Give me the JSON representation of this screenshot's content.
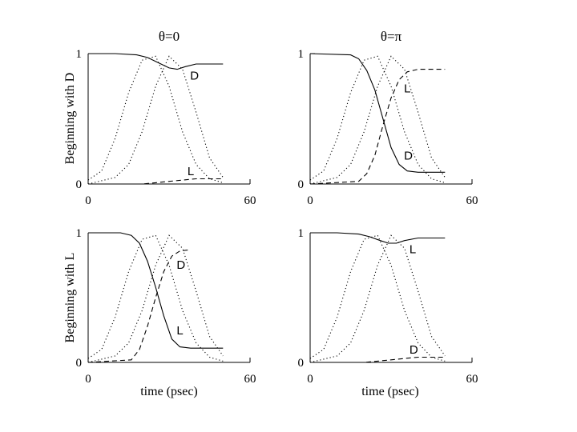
{
  "figure": {
    "row_labels": [
      "Beginning with D",
      "Beginning with L"
    ],
    "xlabel": "time (psec)"
  },
  "chart_data": [
    {
      "type": "line",
      "title": "θ=0",
      "xlim": [
        0,
        60
      ],
      "ylim": [
        0,
        1
      ],
      "yticks": [
        "0",
        "1"
      ],
      "xticks": [
        "0",
        "60"
      ],
      "series": [
        {
          "style": "dotted",
          "x": [
            0,
            5,
            10,
            15,
            20,
            25,
            30,
            35,
            40,
            45,
            50
          ],
          "y": [
            0.03,
            0.1,
            0.35,
            0.7,
            0.95,
            0.98,
            0.75,
            0.4,
            0.15,
            0.04,
            0.01
          ]
        },
        {
          "style": "dotted",
          "x": [
            0,
            10,
            15,
            20,
            25,
            30,
            35,
            40,
            45,
            50
          ],
          "y": [
            0.0,
            0.05,
            0.15,
            0.4,
            0.75,
            0.98,
            0.88,
            0.55,
            0.2,
            0.05
          ]
        },
        {
          "style": "solid",
          "label": "D",
          "x": [
            0,
            10,
            18,
            22,
            26,
            30,
            33,
            36,
            40,
            44,
            50
          ],
          "y": [
            1.0,
            1.0,
            0.99,
            0.97,
            0.93,
            0.89,
            0.88,
            0.9,
            0.92,
            0.92,
            0.92
          ]
        },
        {
          "style": "dashed",
          "label": "L",
          "x": [
            0,
            20,
            25,
            30,
            35,
            40,
            50
          ],
          "y": [
            0.0,
            0.0,
            0.01,
            0.02,
            0.03,
            0.04,
            0.04
          ]
        }
      ]
    },
    {
      "type": "line",
      "title": "θ=π",
      "xlim": [
        0,
        60
      ],
      "ylim": [
        0,
        1
      ],
      "yticks": [
        "0",
        "1"
      ],
      "xticks": [
        "0",
        "60"
      ],
      "series": [
        {
          "style": "dotted",
          "x": [
            0,
            5,
            10,
            15,
            20,
            25,
            30,
            35,
            40,
            45,
            50
          ],
          "y": [
            0.03,
            0.1,
            0.35,
            0.7,
            0.95,
            0.98,
            0.75,
            0.4,
            0.15,
            0.04,
            0.01
          ]
        },
        {
          "style": "dotted",
          "x": [
            0,
            10,
            15,
            20,
            25,
            30,
            35,
            40,
            45,
            50
          ],
          "y": [
            0.0,
            0.05,
            0.15,
            0.4,
            0.75,
            0.98,
            0.88,
            0.55,
            0.2,
            0.05
          ]
        },
        {
          "style": "solid",
          "label": "D",
          "x": [
            0,
            15,
            18,
            21,
            24,
            27,
            30,
            33,
            36,
            40,
            50
          ],
          "y": [
            1.0,
            0.99,
            0.96,
            0.87,
            0.72,
            0.5,
            0.28,
            0.15,
            0.1,
            0.09,
            0.09
          ]
        },
        {
          "style": "dashed",
          "label": "L",
          "x": [
            0,
            18,
            21,
            24,
            27,
            30,
            33,
            36,
            40,
            50
          ],
          "y": [
            0.0,
            0.02,
            0.08,
            0.22,
            0.45,
            0.66,
            0.8,
            0.86,
            0.88,
            0.88
          ]
        }
      ]
    },
    {
      "type": "line",
      "title": "",
      "xlim": [
        0,
        60
      ],
      "ylim": [
        0,
        1
      ],
      "yticks": [
        "0",
        "1"
      ],
      "xticks": [
        "0",
        "60"
      ],
      "series": [
        {
          "style": "dotted",
          "x": [
            0,
            5,
            10,
            15,
            20,
            25,
            30,
            35,
            40,
            45,
            50
          ],
          "y": [
            0.03,
            0.1,
            0.35,
            0.7,
            0.95,
            0.98,
            0.75,
            0.4,
            0.15,
            0.04,
            0.01
          ]
        },
        {
          "style": "dotted",
          "x": [
            0,
            10,
            15,
            20,
            25,
            30,
            35,
            40,
            45,
            50
          ],
          "y": [
            0.0,
            0.05,
            0.15,
            0.4,
            0.75,
            0.98,
            0.88,
            0.55,
            0.2,
            0.05
          ]
        },
        {
          "style": "solid",
          "label": "L",
          "x": [
            0,
            12,
            16,
            19,
            22,
            25,
            28,
            31,
            34,
            38,
            50
          ],
          "y": [
            1.0,
            1.0,
            0.98,
            0.92,
            0.78,
            0.58,
            0.36,
            0.18,
            0.12,
            0.11,
            0.11
          ]
        },
        {
          "style": "dashed",
          "label": "D",
          "x": [
            0,
            16,
            19,
            22,
            25,
            28,
            31,
            34,
            38
          ],
          "y": [
            0.0,
            0.02,
            0.1,
            0.28,
            0.5,
            0.7,
            0.82,
            0.86,
            0.87
          ]
        }
      ]
    },
    {
      "type": "line",
      "title": "",
      "xlim": [
        0,
        60
      ],
      "ylim": [
        0,
        1
      ],
      "yticks": [
        "0",
        "1"
      ],
      "xticks": [
        "0",
        "60"
      ],
      "series": [
        {
          "style": "dotted",
          "x": [
            0,
            5,
            10,
            15,
            20,
            25,
            30,
            35,
            40,
            45,
            50
          ],
          "y": [
            0.03,
            0.1,
            0.35,
            0.7,
            0.95,
            0.98,
            0.75,
            0.4,
            0.15,
            0.04,
            0.01
          ]
        },
        {
          "style": "dotted",
          "x": [
            0,
            10,
            15,
            20,
            25,
            30,
            35,
            40,
            45,
            50
          ],
          "y": [
            0.0,
            0.05,
            0.15,
            0.4,
            0.75,
            0.98,
            0.88,
            0.55,
            0.2,
            0.05
          ]
        },
        {
          "style": "solid",
          "label": "L",
          "x": [
            0,
            10,
            18,
            22,
            26,
            29,
            32,
            35,
            40,
            44,
            50
          ],
          "y": [
            1.0,
            1.0,
            0.99,
            0.97,
            0.94,
            0.92,
            0.92,
            0.94,
            0.96,
            0.96,
            0.96
          ]
        },
        {
          "style": "dashed",
          "label": "D",
          "x": [
            0,
            20,
            25,
            30,
            35,
            40,
            50
          ],
          "y": [
            0.0,
            0.0,
            0.01,
            0.02,
            0.03,
            0.04,
            0.04
          ]
        }
      ]
    }
  ]
}
